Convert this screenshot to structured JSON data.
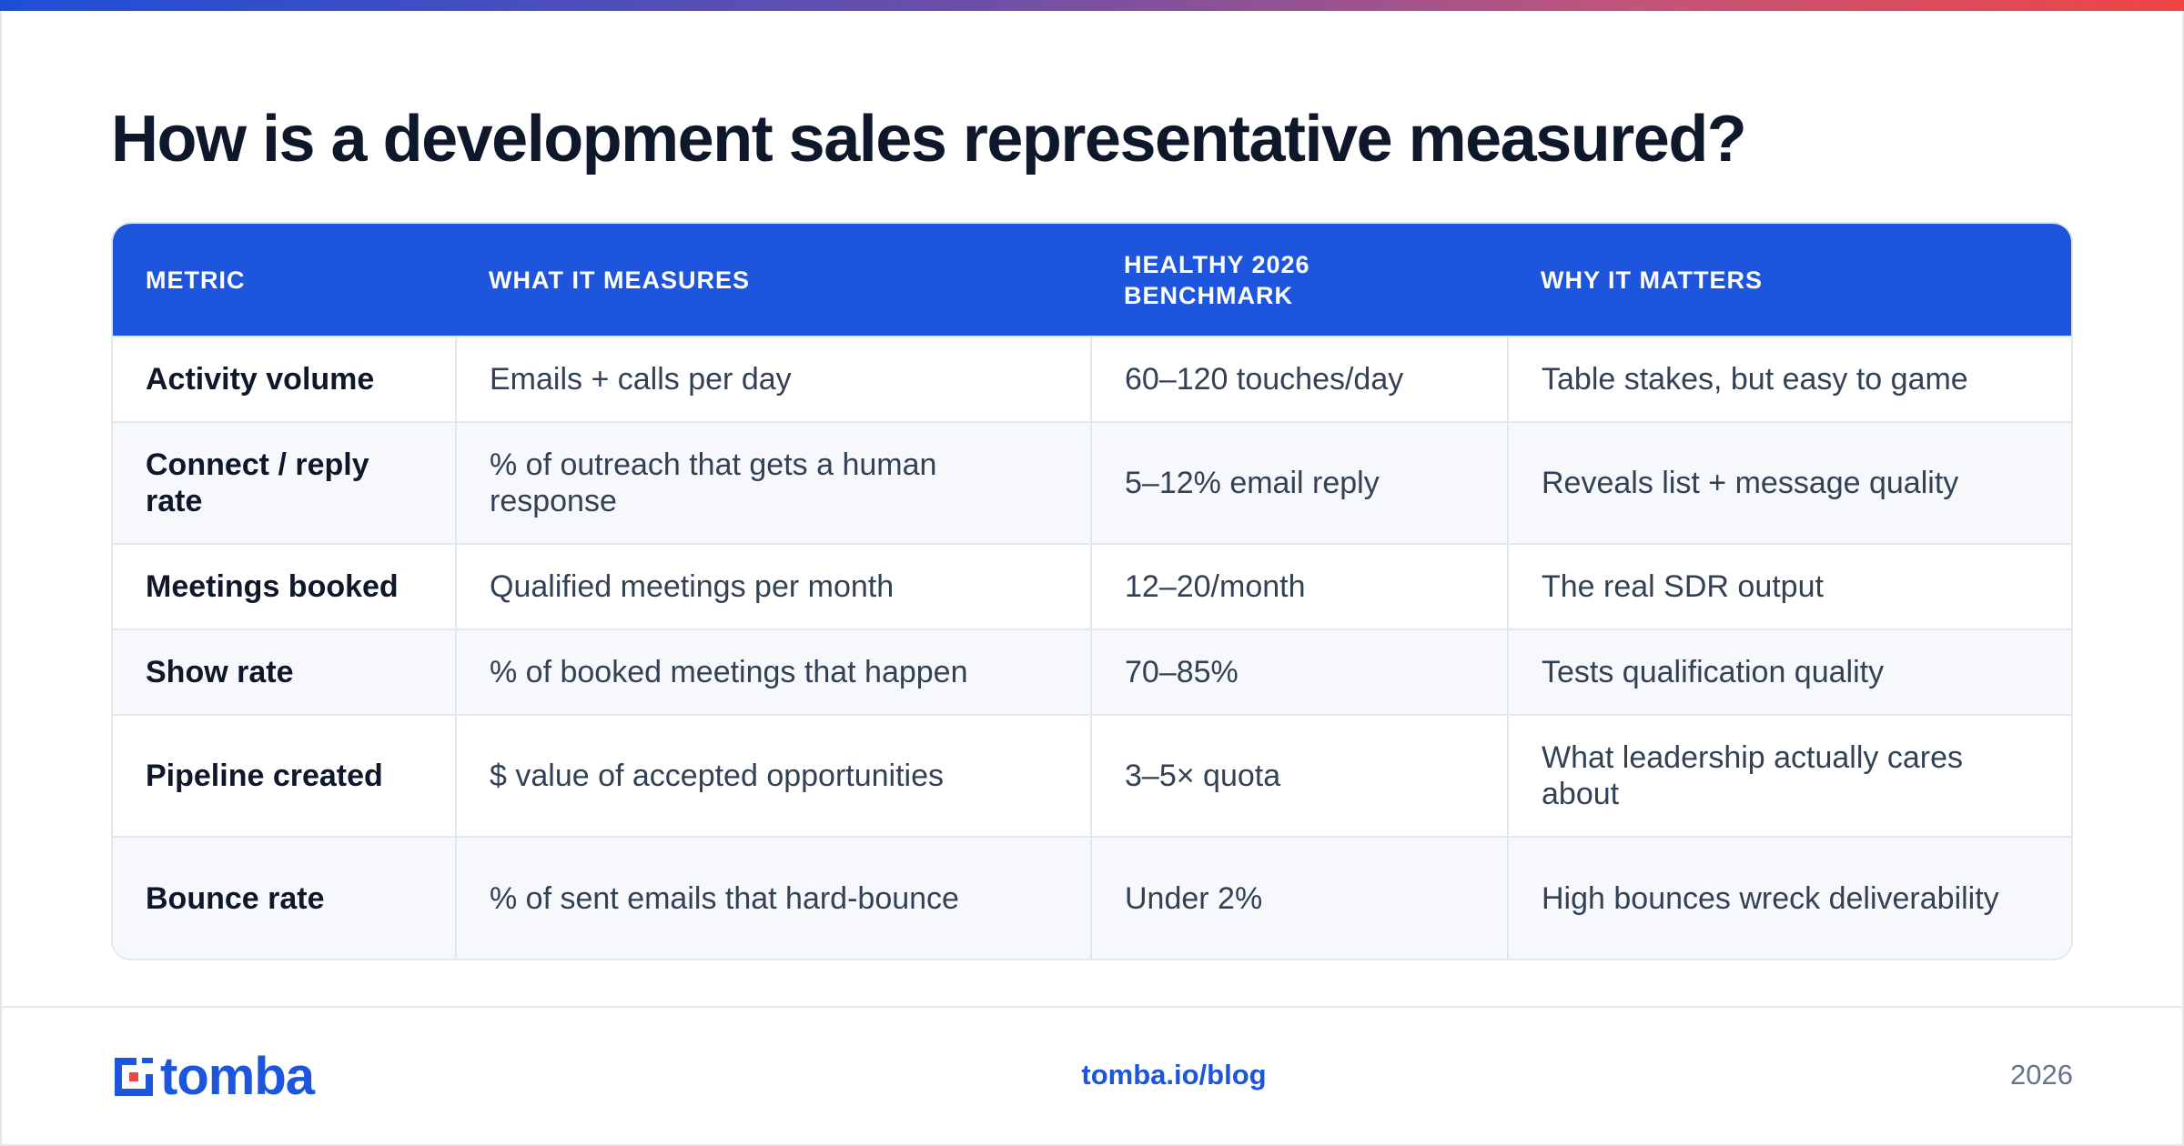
{
  "title": "How is a development sales representative measured?",
  "table": {
    "headers": [
      "METRIC",
      "WHAT IT MEASURES",
      "HEALTHY 2026 BENCHMARK",
      "WHY IT MATTERS"
    ],
    "rows": [
      [
        "Activity volume",
        "Emails + calls per day",
        "60–120 touches/day",
        "Table stakes, but easy to game"
      ],
      [
        "Connect / reply rate",
        "% of outreach that gets a human response",
        "5–12% email reply",
        "Reveals list + message quality"
      ],
      [
        "Meetings booked",
        "Qualified meetings per month",
        "12–20/month",
        "The real SDR output"
      ],
      [
        "Show rate",
        "% of booked meetings that happen",
        "70–85%",
        "Tests qualification quality"
      ],
      [
        "Pipeline created",
        "$ value of accepted opportunities",
        "3–5× quota",
        "What leadership actually cares about"
      ],
      [
        "Bounce rate",
        "% of sent emails that hard-bounce",
        "Under 2%",
        "High bounces wreck deliverability"
      ]
    ]
  },
  "footer": {
    "logo_text": "tomba",
    "link": "tomba.io/blog",
    "year": "2026"
  },
  "colors": {
    "brand_blue": "#1d55dc",
    "accent_red": "#ef4444",
    "title_text": "#0f172a",
    "body_text": "#334155"
  },
  "icons": {
    "logo": "tomba-logo-mark-icon"
  }
}
